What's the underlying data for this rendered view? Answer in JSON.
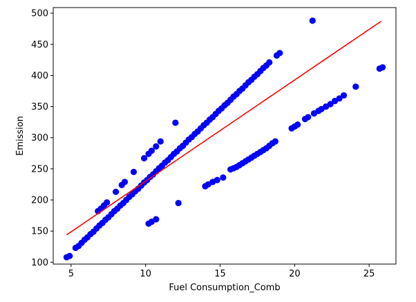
{
  "chart_data": {
    "type": "scatter",
    "title": "",
    "xlabel": "Fuel Consumption_Comb",
    "ylabel": "Emission",
    "xlim": [
      3.8,
      26.8
    ],
    "ylim": [
      97,
      509
    ],
    "xticks": [
      5,
      10,
      15,
      20,
      25
    ],
    "yticks": [
      100,
      150,
      200,
      250,
      300,
      350,
      400,
      450,
      500
    ],
    "grid": false,
    "legend": "none",
    "colors": {
      "points": "#0000ff",
      "fit_line": "#ff0000",
      "axes": "#000000"
    },
    "series": [
      {
        "kind": "scatter",
        "points": [
          [
            4.7,
            108
          ],
          [
            4.9,
            110
          ],
          [
            5.3,
            123
          ],
          [
            5.5,
            126
          ],
          [
            5.7,
            131
          ],
          [
            5.9,
            136
          ],
          [
            6.1,
            140
          ],
          [
            6.3,
            145
          ],
          [
            6.5,
            149
          ],
          [
            6.7,
            154
          ],
          [
            6.9,
            159
          ],
          [
            7.1,
            163
          ],
          [
            7.3,
            168
          ],
          [
            7.5,
            172
          ],
          [
            7.7,
            177
          ],
          [
            7.9,
            182
          ],
          [
            8.1,
            186
          ],
          [
            8.3,
            191
          ],
          [
            8.5,
            195
          ],
          [
            8.7,
            200
          ],
          [
            8.9,
            205
          ],
          [
            9.1,
            209
          ],
          [
            9.3,
            214
          ],
          [
            9.5,
            218
          ],
          [
            9.7,
            223
          ],
          [
            9.9,
            228
          ],
          [
            10.1,
            232
          ],
          [
            10.3,
            237
          ],
          [
            10.5,
            241
          ],
          [
            10.7,
            246
          ],
          [
            10.9,
            251
          ],
          [
            11.1,
            255
          ],
          [
            11.3,
            260
          ],
          [
            11.5,
            264
          ],
          [
            11.7,
            269
          ],
          [
            11.9,
            274
          ],
          [
            12.1,
            278
          ],
          [
            12.3,
            283
          ],
          [
            12.5,
            287
          ],
          [
            12.7,
            292
          ],
          [
            12.9,
            297
          ],
          [
            13.1,
            301
          ],
          [
            13.3,
            306
          ],
          [
            13.5,
            310
          ],
          [
            13.7,
            315
          ],
          [
            13.9,
            320
          ],
          [
            14.1,
            324
          ],
          [
            14.3,
            329
          ],
          [
            14.5,
            333
          ],
          [
            14.7,
            338
          ],
          [
            14.9,
            343
          ],
          [
            15.1,
            347
          ],
          [
            15.3,
            352
          ],
          [
            15.5,
            356
          ],
          [
            15.7,
            361
          ],
          [
            15.9,
            366
          ],
          [
            16.1,
            370
          ],
          [
            16.3,
            375
          ],
          [
            16.5,
            379
          ],
          [
            16.7,
            384
          ],
          [
            16.9,
            389
          ],
          [
            17.1,
            393
          ],
          [
            17.3,
            398
          ],
          [
            17.5,
            402
          ],
          [
            17.7,
            407
          ],
          [
            17.9,
            412
          ],
          [
            18.1,
            416
          ],
          [
            18.3,
            421
          ],
          [
            18.8,
            432
          ],
          [
            19.0,
            436
          ],
          [
            6.8,
            182
          ],
          [
            7.0,
            186
          ],
          [
            7.2,
            191
          ],
          [
            7.4,
            196
          ],
          [
            8.0,
            213
          ],
          [
            8.4,
            224
          ],
          [
            8.6,
            229
          ],
          [
            9.2,
            245
          ],
          [
            9.9,
            267
          ],
          [
            10.2,
            274
          ],
          [
            10.4,
            279
          ],
          [
            10.7,
            286
          ],
          [
            11.0,
            294
          ],
          [
            12.0,
            324
          ],
          [
            21.2,
            488
          ],
          [
            10.2,
            162
          ],
          [
            10.4,
            165
          ],
          [
            10.7,
            169
          ],
          [
            12.2,
            195
          ],
          [
            14.0,
            222
          ],
          [
            14.2,
            225
          ],
          [
            14.5,
            229
          ],
          [
            14.8,
            232
          ],
          [
            15.2,
            236
          ],
          [
            15.7,
            249
          ],
          [
            15.9,
            251
          ],
          [
            16.1,
            253
          ],
          [
            16.3,
            256
          ],
          [
            16.5,
            259
          ],
          [
            16.7,
            262
          ],
          [
            16.9,
            265
          ],
          [
            17.1,
            268
          ],
          [
            17.3,
            271
          ],
          [
            17.5,
            274
          ],
          [
            17.7,
            277
          ],
          [
            17.9,
            280
          ],
          [
            18.1,
            283
          ],
          [
            18.3,
            287
          ],
          [
            18.5,
            291
          ],
          [
            18.7,
            294
          ],
          [
            19.8,
            315
          ],
          [
            20.0,
            318
          ],
          [
            20.2,
            321
          ],
          [
            20.7,
            330
          ],
          [
            20.9,
            333
          ],
          [
            21.3,
            339
          ],
          [
            21.6,
            343
          ],
          [
            21.8,
            346
          ],
          [
            22.1,
            350
          ],
          [
            22.4,
            354
          ],
          [
            22.7,
            359
          ],
          [
            23.0,
            363
          ],
          [
            23.3,
            368
          ],
          [
            24.1,
            382
          ],
          [
            25.7,
            411
          ],
          [
            25.9,
            413
          ]
        ]
      },
      {
        "kind": "line",
        "points": [
          [
            4.7,
            144
          ],
          [
            25.8,
            487
          ]
        ]
      }
    ]
  }
}
